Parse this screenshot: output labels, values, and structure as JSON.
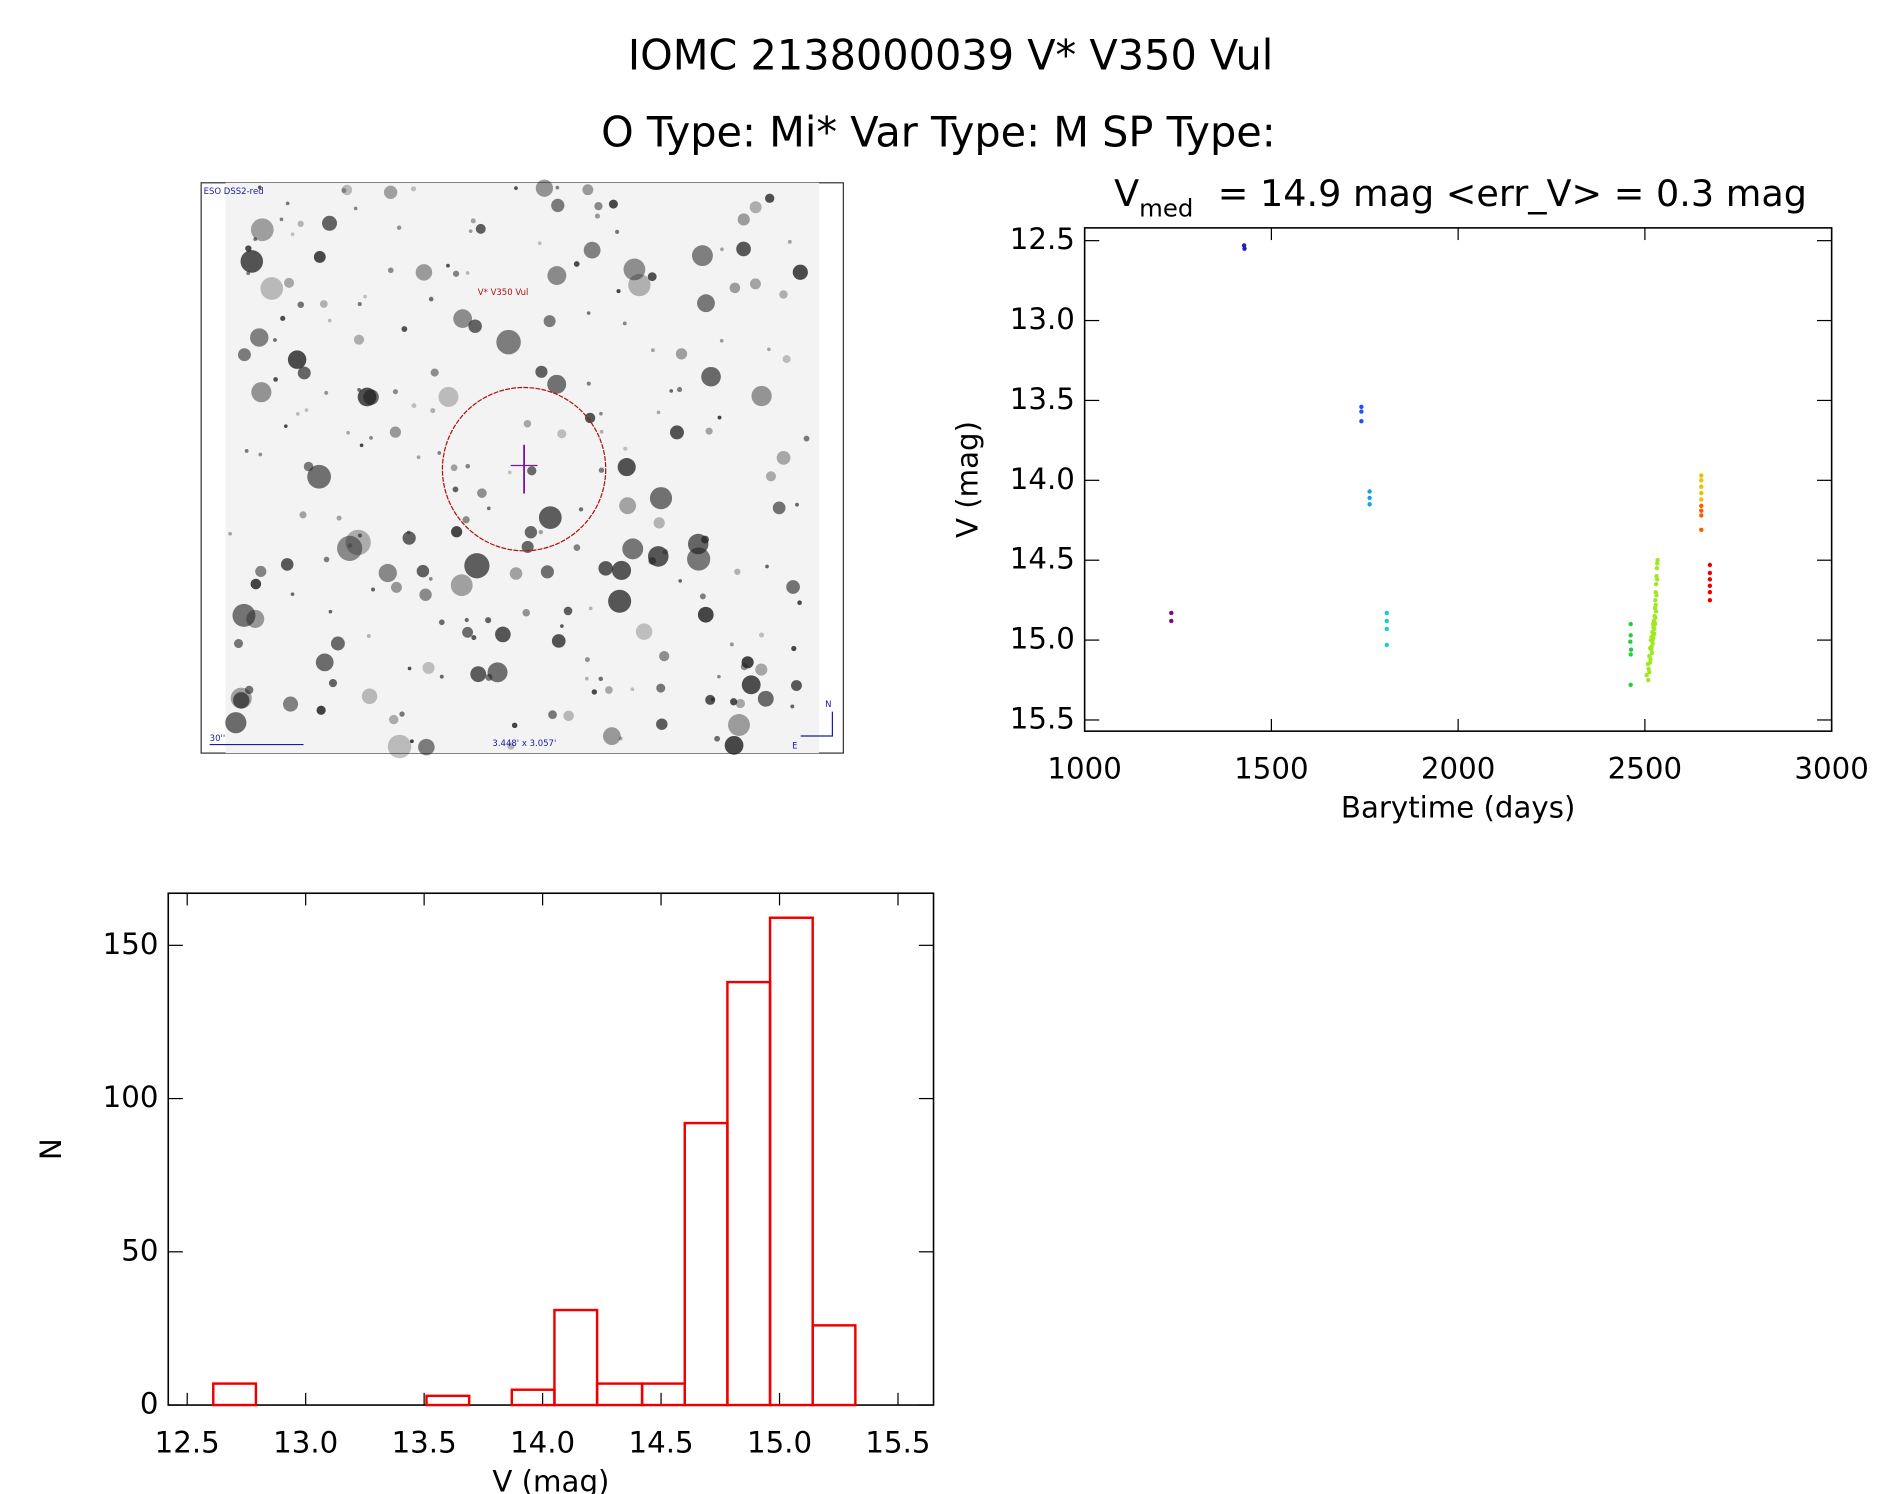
{
  "header": {
    "title": "IOMC 2138000039    V* V350 Vul",
    "subtitle": "O Type: Mi*  Var Type: M  SP Type:"
  },
  "finder": {
    "survey": "ESO DSS2-red",
    "target": "V* V350 Vul",
    "scale": "30''",
    "size": "3.448' x 3.057'",
    "north": "N",
    "east": "E"
  },
  "chart_data": [
    {
      "type": "scatter",
      "title": {
        "main": "V",
        "sub": "med",
        "rest": "= 14.9 mag <err_V> = 0.3 mag"
      },
      "x_label": "Barytime (days)",
      "y_label": "V (mag)",
      "xlim": [
        1000,
        3000
      ],
      "xticks": [
        1000,
        1500,
        2000,
        2500,
        3000
      ],
      "ylim": [
        15.57,
        12.42
      ],
      "yticks": [
        {
          "value": 12.5,
          "label": "12.5"
        },
        {
          "value": 13,
          "label": "13.0"
        },
        {
          "value": 13.5,
          "label": "13.5"
        },
        {
          "value": 14,
          "label": "14.0"
        },
        {
          "value": 14.5,
          "label": "14.5"
        },
        {
          "value": 15,
          "label": "15.0"
        },
        {
          "value": 15.5,
          "label": "15.5"
        }
      ],
      "series": [
        {
          "color": "#7a0a80",
          "x": [
            1232,
            1232
          ],
          "y": [
            14.83,
            14.88
          ]
        },
        {
          "color": "#2020b8",
          "x": [
            1427,
            1428
          ],
          "y": [
            12.53,
            12.55
          ]
        },
        {
          "color": "#1f4fff",
          "x": [
            1741,
            1741,
            1741
          ],
          "y": [
            13.54,
            13.57,
            13.63
          ]
        },
        {
          "color": "#12a0f0",
          "x": [
            1763,
            1763,
            1763
          ],
          "y": [
            14.07,
            14.11,
            14.15
          ]
        },
        {
          "color": "#10d0d0",
          "x": [
            1809,
            1809,
            1809,
            1809
          ],
          "y": [
            14.83,
            14.88,
            14.93,
            15.03
          ]
        },
        {
          "color": "#20d040",
          "x": [
            2462,
            2462,
            2461,
            2463,
            2462,
            2462
          ],
          "y": [
            14.9,
            14.97,
            15.01,
            15.06,
            15.09,
            15.28
          ]
        },
        {
          "color": "#a0e820",
          "x": [
            2505,
            2508,
            2510,
            2512,
            2514,
            2515,
            2516,
            2518,
            2519,
            2520,
            2521,
            2522,
            2523,
            2524,
            2525,
            2526,
            2527,
            2527,
            2528,
            2529,
            2530,
            2530,
            2531,
            2532,
            2533,
            2534,
            2512,
            2517,
            2520,
            2523,
            2525,
            2528,
            2531,
            2509,
            2514,
            2518,
            2522,
            2526,
            2529,
            2533
          ],
          "y": [
            15.22,
            15.15,
            15.18,
            15.1,
            15.05,
            15.12,
            15.0,
            14.98,
            15.08,
            14.95,
            15.02,
            14.9,
            14.97,
            14.88,
            14.93,
            14.85,
            14.8,
            14.9,
            14.75,
            14.7,
            14.82,
            14.65,
            14.6,
            14.55,
            14.52,
            14.5,
            15.2,
            15.06,
            15.0,
            14.92,
            14.96,
            14.86,
            14.72,
            15.25,
            15.14,
            15.04,
            14.99,
            14.89,
            14.78,
            14.62
          ]
        },
        {
          "color": "#f0c000",
          "x": [
            2651,
            2651,
            2651,
            2651,
            2651
          ],
          "y": [
            13.97,
            14.0,
            14.04,
            14.08,
            14.12
          ]
        },
        {
          "color": "#ff5a00",
          "x": [
            2651,
            2651,
            2651,
            2651
          ],
          "y": [
            14.16,
            14.19,
            14.22,
            14.31
          ]
        },
        {
          "color": "#ee0000",
          "x": [
            2674,
            2674,
            2674,
            2674,
            2674,
            2674
          ],
          "y": [
            14.53,
            14.58,
            14.62,
            14.66,
            14.7,
            14.75
          ]
        }
      ]
    },
    {
      "type": "histogram",
      "color": "#ee0000",
      "x_label": "V (mag)",
      "y_label": "N",
      "xlim": [
        12.42,
        15.65
      ],
      "xticks": [
        {
          "value": 12.5,
          "label": "12.5"
        },
        {
          "value": 13,
          "label": "13.0"
        },
        {
          "value": 13.5,
          "label": "13.5"
        },
        {
          "value": 14,
          "label": "14.0"
        },
        {
          "value": 14.5,
          "label": "14.5"
        },
        {
          "value": 15,
          "label": "15.0"
        },
        {
          "value": 15.5,
          "label": "15.5"
        }
      ],
      "ylim": [
        0,
        167
      ],
      "yticks": [
        0,
        50,
        100,
        150
      ],
      "bins": [
        12.61,
        12.79,
        12.97,
        13.15,
        13.33,
        13.51,
        13.69,
        13.87,
        14.05,
        14.23,
        14.42,
        14.6,
        14.78,
        14.96,
        15.14,
        15.32
      ],
      "values": [
        7,
        0,
        0,
        0,
        0,
        3,
        0,
        5,
        31,
        7,
        7,
        92,
        138,
        159,
        26
      ]
    }
  ]
}
